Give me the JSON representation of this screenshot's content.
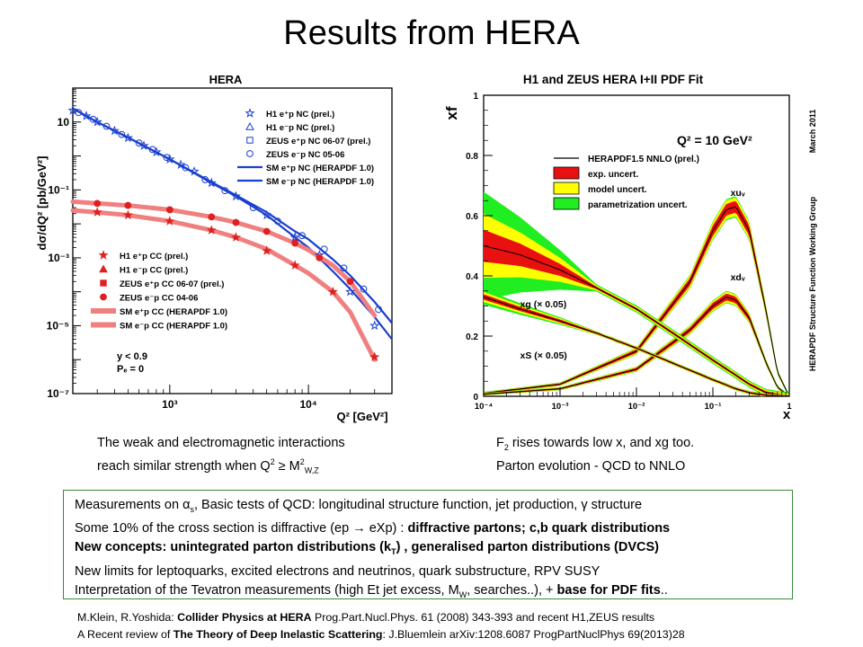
{
  "slide": {
    "title": "Results from HERA"
  },
  "captions": {
    "left_line1": "The weak and electromagnetic interactions",
    "left_line2_pre": "reach similar strength when Q",
    "left_line2_sup1": "2",
    "left_line2_mid": " ≥ M",
    "left_line2_sup2": "2",
    "left_line2_sub": "W,Z",
    "right_line1_pre": "F",
    "right_line1_sub": "2",
    "right_line1_post": " rises towards low x, and xg too.",
    "right_line2": "Parton evolution - QCD to NNLO"
  },
  "summary": {
    "l1_pre": "Measurements on α",
    "l1_sub": "s",
    "l1_post": ", Basic tests of QCD: longitudinal structure function, jet production, γ structure",
    "l2_pre": "Some 10% of the cross section is diffractive (ep ",
    "l2_arrow": "→",
    "l2_mid": " eXp) : ",
    "l2_bold": "diffractive partons; c,b quark distributions",
    "l3_bold_pre": "New concepts: unintegrated parton distributions (k",
    "l3_sub": "T",
    "l3_bold_post": ") , generalised parton distributions (DVCS)",
    "l4": "New limits for leptoquarks, excited electrons and neutrinos, quark substructure, RPV SUSY",
    "l5_pre": "Interpretation of the Tevatron measurements (high Et jet excess, M",
    "l5_sub": "W",
    "l5_mid": ", searches..), + ",
    "l5_bold": "base for PDF fits",
    "l5_post": ".."
  },
  "references": {
    "r1_pre": "M.Klein, R.Yoshida:  ",
    "r1_bold": "Collider Physics at HERA",
    "r1_post": " Prog.Part.Nucl.Phys. 61 (2008) 343-393 and recent H1,ZEUS results",
    "r2_pre": "A Recent review of ",
    "r2_bold": "The Theory of Deep Inelastic Scattering",
    "r2_post": ": J.Bluemlein arXiv:1208.6087  ProgPartNuclPhys 69(2013)28"
  },
  "chart_data": [
    {
      "type": "scatter",
      "title": "HERA",
      "xlabel": "Q² [GeV²]",
      "ylabel": "dσ/dQ² [pb/GeV²]",
      "xscale": "log",
      "yscale": "log",
      "xlim": [
        200,
        40000
      ],
      "ylim": [
        1e-07,
        100
      ],
      "xtick_labels": [
        "10³",
        "10⁴"
      ],
      "ytick_labels": [
        "10",
        "10⁻¹",
        "10⁻³",
        "10⁻⁵",
        "10⁻⁷"
      ],
      "annotation_lines": [
        "y < 0.9",
        "Pₑ = 0"
      ],
      "colors": {
        "nc": "#1a3fcf",
        "cc": "#e02020",
        "cc_band": "#f08080"
      },
      "legend_nc": [
        {
          "label": "H1 e⁺p NC (prel.)",
          "marker": "star"
        },
        {
          "label": "H1 e⁻p NC (prel.)",
          "marker": "triangle-open"
        },
        {
          "label": "ZEUS e⁺p NC 06-07 (prel.)",
          "marker": "square-open"
        },
        {
          "label": "ZEUS e⁻p NC 05-06",
          "marker": "circle-open"
        },
        {
          "label": "SM e⁺p NC (HERAPDF 1.0)",
          "marker": "line"
        },
        {
          "label": "SM e⁻p NC (HERAPDF 1.0)",
          "marker": "line"
        }
      ],
      "legend_cc": [
        {
          "label": "H1 e⁺p CC (prel.)",
          "marker": "star"
        },
        {
          "label": "H1 e⁻p CC (prel.)",
          "marker": "triangle"
        },
        {
          "label": "ZEUS e⁺p CC 06-07 (prel.)",
          "marker": "square"
        },
        {
          "label": "ZEUS e⁻p CC 04-06",
          "marker": "circle"
        },
        {
          "label": "SM e⁺p CC (HERAPDF 1.0)",
          "marker": "band"
        },
        {
          "label": "SM e⁻p CC (HERAPDF 1.0)",
          "marker": "band"
        }
      ],
      "series": [
        {
          "name": "SM e⁻p NC (HERAPDF 1.0)",
          "kind": "nc",
          "x": [
            200,
            300,
            500,
            1000,
            2000,
            3000,
            5000,
            8000,
            10000,
            15000,
            20000,
            30000,
            40000
          ],
          "y": [
            25,
            10,
            3.5,
            0.8,
            0.17,
            0.07,
            0.022,
            0.006,
            0.0035,
            0.0009,
            0.0003,
            5e-05,
            1.2e-05
          ]
        },
        {
          "name": "SM e⁺p NC (HERAPDF 1.0)",
          "kind": "nc",
          "x": [
            200,
            300,
            500,
            1000,
            2000,
            3000,
            5000,
            8000,
            10000,
            15000,
            20000,
            30000,
            40000
          ],
          "y": [
            25,
            10,
            3.5,
            0.8,
            0.16,
            0.065,
            0.018,
            0.004,
            0.002,
            0.0004,
            0.00012,
            1.8e-05,
            4e-06
          ]
        },
        {
          "name": "SM e⁻p CC (HERAPDF 1.0)",
          "kind": "cc",
          "x": [
            200,
            300,
            500,
            1000,
            2000,
            3000,
            5000,
            8000,
            10000,
            15000,
            20000,
            30000
          ],
          "y": [
            0.045,
            0.04,
            0.035,
            0.026,
            0.016,
            0.011,
            0.006,
            0.0027,
            0.0017,
            0.0006,
            0.0002,
            2e-05
          ]
        },
        {
          "name": "SM e⁺p CC (HERAPDF 1.0)",
          "kind": "cc",
          "x": [
            200,
            300,
            500,
            1000,
            2000,
            3000,
            5000,
            8000,
            10000,
            15000,
            20000,
            30000
          ],
          "y": [
            0.025,
            0.022,
            0.018,
            0.012,
            0.0065,
            0.004,
            0.0018,
            0.0006,
            0.00035,
            0.0001,
            2.5e-05,
            1e-06
          ]
        },
        {
          "name": "H1 e⁺p NC (prel.)",
          "kind": "nc_data",
          "x": [
            200,
            250,
            300,
            400,
            500,
            650,
            800,
            1000,
            1200,
            1500,
            2000,
            3000,
            5000,
            8000,
            12000,
            20000,
            30000
          ],
          "y": [
            22,
            15,
            10,
            5.5,
            3.4,
            2,
            1.3,
            0.8,
            0.55,
            0.35,
            0.16,
            0.065,
            0.018,
            0.004,
            0.0012,
            0.0001,
            1e-05
          ]
        },
        {
          "name": "ZEUS e⁻p NC 05-06",
          "kind": "nc_data",
          "x": [
            220,
            280,
            350,
            450,
            600,
            750,
            950,
            1300,
            1800,
            2500,
            4000,
            6000,
            9000,
            13000,
            18000,
            25000,
            32000
          ],
          "y": [
            19,
            12,
            7.5,
            4.3,
            2.4,
            1.55,
            0.9,
            0.45,
            0.2,
            0.095,
            0.03,
            0.012,
            0.0045,
            0.0018,
            0.0005,
            0.00012,
            3e-05
          ]
        },
        {
          "name": "H1 e⁺p CC (prel.)",
          "kind": "cc_data",
          "x": [
            300,
            500,
            1000,
            2000,
            3000,
            5000,
            8000,
            15000,
            30000
          ],
          "y": [
            0.022,
            0.018,
            0.012,
            0.0065,
            0.004,
            0.0016,
            0.0006,
            0.0001,
            1.2e-06
          ]
        },
        {
          "name": "ZEUS e⁻p CC 04-06",
          "kind": "cc_data",
          "x": [
            300,
            500,
            1000,
            2000,
            3000,
            5000,
            8000,
            12000,
            20000
          ],
          "y": [
            0.04,
            0.035,
            0.026,
            0.016,
            0.011,
            0.006,
            0.0027,
            0.001,
            0.0002
          ]
        }
      ]
    },
    {
      "type": "area",
      "title": "H1 and ZEUS HERA I+II PDF Fit",
      "ylabel": "xf",
      "xlabel": "x",
      "xscale": "log",
      "xlim": [
        0.0001,
        1
      ],
      "ylim": [
        0,
        1
      ],
      "xtick_labels": [
        "10⁻⁴",
        "10⁻³",
        "10⁻²",
        "10⁻¹",
        "1"
      ],
      "ytick_labels": [
        "0",
        "0.2",
        "0.4",
        "0.6",
        "0.8",
        "1"
      ],
      "annotation_q2": "Q² = 10 GeV²",
      "side_label_right": "HERAPDF Structure Function Working Group",
      "side_label_date": "March 2011",
      "colors": {
        "exp": "#e81010",
        "model": "#ffff00",
        "param": "#20ee20",
        "line": "#000000"
      },
      "legend": [
        {
          "label": "HERAPDF1.5 NNLO (prel.)",
          "marker": "line"
        },
        {
          "label": "exp. uncert.",
          "marker": "red-box"
        },
        {
          "label": "model uncert.",
          "marker": "yellow-box"
        },
        {
          "label": "parametrization uncert.",
          "marker": "green-box"
        }
      ],
      "series": [
        {
          "name": "xu",
          "label": "xuᵥ",
          "x": [
            0.0001,
            0.001,
            0.01,
            0.05,
            0.1,
            0.15,
            0.2,
            0.3,
            0.5,
            0.7,
            1
          ],
          "y": [
            0.01,
            0.04,
            0.15,
            0.38,
            0.55,
            0.62,
            0.63,
            0.55,
            0.28,
            0.08,
            0
          ]
        },
        {
          "name": "xd",
          "label": "xdᵥ",
          "x": [
            0.0001,
            0.001,
            0.01,
            0.05,
            0.1,
            0.15,
            0.2,
            0.3,
            0.5,
            0.7,
            1
          ],
          "y": [
            0.007,
            0.025,
            0.09,
            0.22,
            0.3,
            0.33,
            0.32,
            0.26,
            0.11,
            0.03,
            0
          ]
        },
        {
          "name": "xg",
          "label": "xg (× 0.05)",
          "x": [
            0.0001,
            0.0003,
            0.001,
            0.003,
            0.01,
            0.03,
            0.1,
            0.2,
            0.3,
            0.5,
            1
          ],
          "y": [
            0.5,
            0.47,
            0.42,
            0.36,
            0.29,
            0.21,
            0.12,
            0.07,
            0.04,
            0.012,
            0
          ]
        },
        {
          "name": "xS",
          "label": "xS (× 0.05)",
          "x": [
            0.0001,
            0.0003,
            0.001,
            0.003,
            0.01,
            0.03,
            0.1,
            0.2,
            0.3,
            0.5,
            1
          ],
          "y": [
            0.33,
            0.29,
            0.25,
            0.21,
            0.16,
            0.11,
            0.055,
            0.025,
            0.012,
            0.003,
            0
          ]
        }
      ]
    }
  ]
}
